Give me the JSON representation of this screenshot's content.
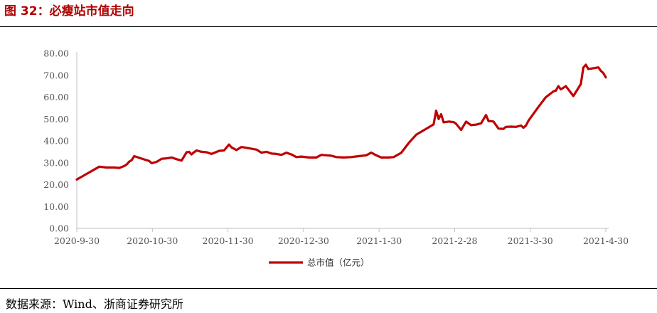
{
  "figure": {
    "title": "图 32：必瘦站市值走向",
    "source": "数据来源：Wind、浙商证券研究所"
  },
  "chart_data": {
    "type": "line",
    "title": "",
    "xlabel": "",
    "ylabel": "",
    "ylim": [
      0,
      80
    ],
    "yticks": [
      "0.00",
      "10.00",
      "20.00",
      "30.00",
      "40.00",
      "50.00",
      "60.00",
      "70.00",
      "80.00"
    ],
    "xticks": [
      "2020-9-30",
      "2020-10-30",
      "2020-11-30",
      "2020-12-30",
      "2021-1-30",
      "2021-2-28",
      "2021-3-30",
      "2021-4-30"
    ],
    "grid": false,
    "legend_position": "bottom",
    "color": "#c00000",
    "series": [
      {
        "name": "总市值（亿元）",
        "x": [
          "2020-09-30",
          "2020-10-09",
          "2020-10-12",
          "2020-10-15",
          "2020-10-17",
          "2020-10-19",
          "2020-10-20",
          "2020-10-21",
          "2020-10-22",
          "2020-10-23",
          "2020-10-27",
          "2020-10-29",
          "2020-10-30",
          "2020-11-01",
          "2020-11-03",
          "2020-11-05",
          "2020-11-07",
          "2020-11-09",
          "2020-11-11",
          "2020-11-13",
          "2020-11-14",
          "2020-11-15",
          "2020-11-16",
          "2020-11-17",
          "2020-11-19",
          "2020-11-21",
          "2020-11-23",
          "2020-11-26",
          "2020-11-28",
          "2020-11-30",
          "2020-12-01",
          "2020-12-03",
          "2020-12-05",
          "2020-12-07",
          "2020-12-09",
          "2020-12-11",
          "2020-12-13",
          "2020-12-15",
          "2020-12-17",
          "2020-12-19",
          "2020-12-21",
          "2020-12-23",
          "2020-12-25",
          "2020-12-27",
          "2020-12-29",
          "2021-01-01",
          "2021-01-04",
          "2021-01-06",
          "2021-01-08",
          "2021-01-10",
          "2021-01-12",
          "2021-01-15",
          "2021-01-18",
          "2021-01-21",
          "2021-01-24",
          "2021-01-26",
          "2021-01-28",
          "2021-01-30",
          "2021-02-02",
          "2021-02-04",
          "2021-02-07",
          "2021-02-10",
          "2021-02-13",
          "2021-02-17",
          "2021-02-20",
          "2021-02-21",
          "2021-02-22",
          "2021-02-23",
          "2021-02-24",
          "2021-02-26",
          "2021-02-28",
          "2021-03-01",
          "2021-03-03",
          "2021-03-05",
          "2021-03-07",
          "2021-03-09",
          "2021-03-11",
          "2021-03-13",
          "2021-03-14",
          "2021-03-15",
          "2021-03-16",
          "2021-03-18",
          "2021-03-20",
          "2021-03-21",
          "2021-03-23",
          "2021-03-25",
          "2021-03-27",
          "2021-03-28",
          "2021-03-29",
          "2021-03-30",
          "2021-04-03",
          "2021-04-06",
          "2021-04-09",
          "2021-04-10",
          "2021-04-11",
          "2021-04-12",
          "2021-04-14",
          "2021-04-17",
          "2021-04-20",
          "2021-04-21",
          "2021-04-22",
          "2021-04-23",
          "2021-04-25",
          "2021-04-27",
          "2021-04-28",
          "2021-04-29",
          "2021-04-30"
        ],
        "values": [
          22.3,
          28.2,
          27.8,
          27.8,
          27.6,
          28.5,
          29.2,
          30.5,
          31.2,
          33.0,
          31.5,
          30.8,
          29.8,
          30.4,
          31.8,
          32.0,
          32.4,
          31.6,
          31.0,
          34.8,
          35.0,
          33.8,
          34.8,
          35.6,
          35.0,
          34.8,
          34.0,
          35.4,
          35.6,
          38.3,
          37.0,
          35.8,
          37.2,
          36.8,
          36.4,
          36.0,
          34.6,
          35.0,
          34.2,
          34.0,
          33.6,
          34.6,
          33.8,
          32.6,
          32.8,
          32.4,
          32.4,
          33.6,
          33.4,
          33.2,
          32.6,
          32.4,
          32.6,
          33.0,
          33.4,
          34.6,
          33.4,
          32.4,
          32.4,
          32.6,
          34.5,
          39.0,
          42.8,
          45.5,
          47.5,
          53.8,
          50.0,
          52.2,
          48.5,
          48.8,
          48.6,
          47.8,
          45.0,
          48.8,
          47.2,
          47.4,
          48.0,
          51.8,
          49.0,
          49.0,
          48.8,
          45.6,
          45.5,
          46.4,
          46.5,
          46.4,
          47.0,
          46.0,
          47.0,
          49.2,
          55.5,
          60.0,
          62.6,
          63.0,
          65.0,
          63.5,
          65.0,
          60.5,
          66.0,
          73.5,
          74.8,
          72.8,
          73.2,
          73.6,
          72.0,
          71.0,
          69.0
        ]
      }
    ]
  }
}
